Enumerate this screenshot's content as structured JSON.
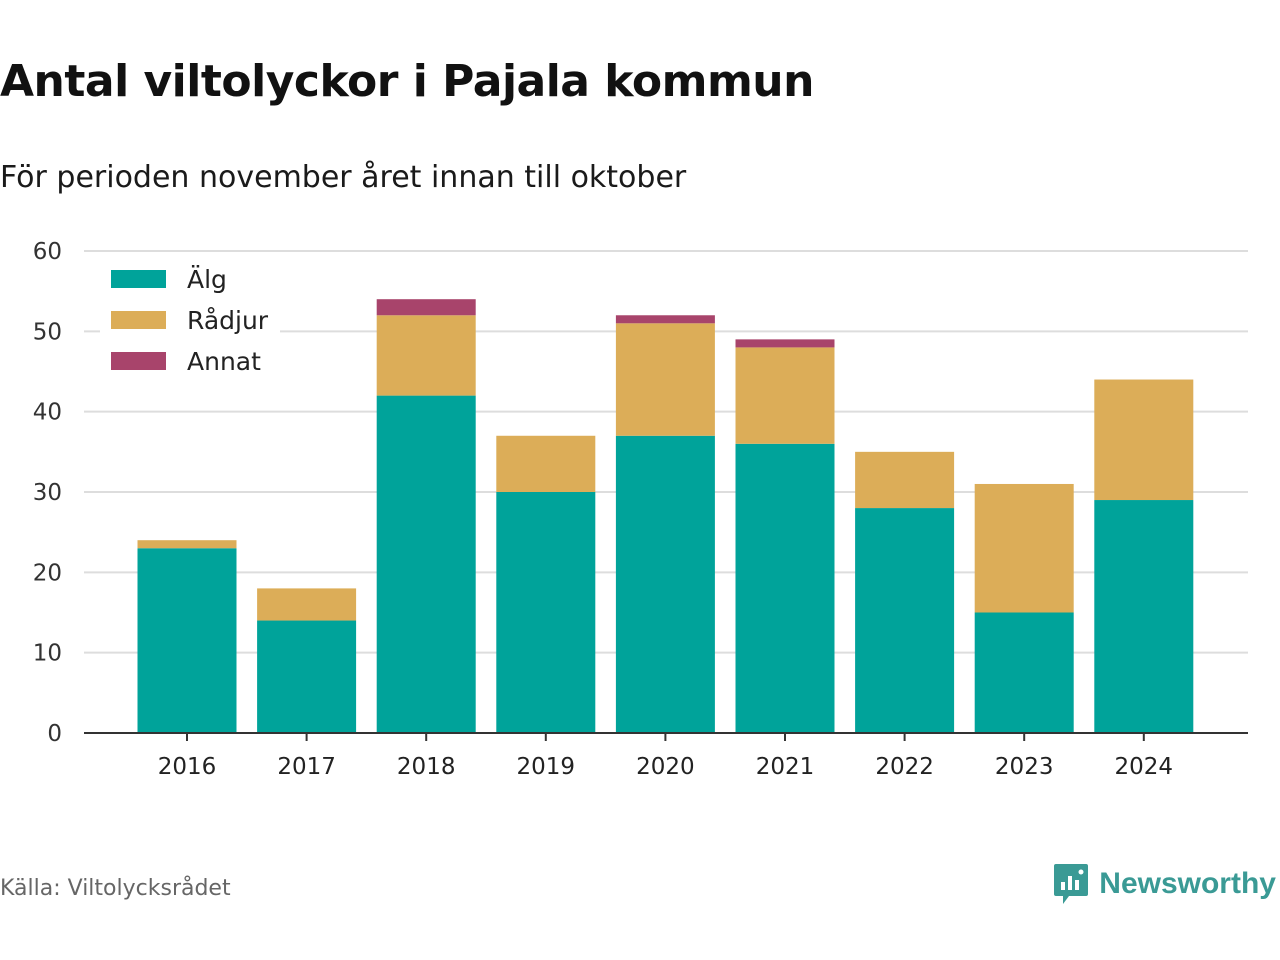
{
  "title": "Antal viltolyckor i Pajala kommun",
  "subtitle": "För perioden november året innan till oktober",
  "source": "Källa: Viltolycksrådet",
  "brand": "Newsworthy",
  "colors": {
    "alg": "#00a39a",
    "radjur": "#dcad58",
    "annat": "#a8446b",
    "grid": "#dddddd",
    "axis": "#333333"
  },
  "chart_data": {
    "type": "bar",
    "stacked": true,
    "categories": [
      "2016",
      "2017",
      "2018",
      "2019",
      "2020",
      "2021",
      "2022",
      "2023",
      "2024"
    ],
    "series": [
      {
        "name": "Älg",
        "values": [
          23,
          14,
          42,
          30,
          37,
          36,
          28,
          15,
          29
        ]
      },
      {
        "name": "Rådjur",
        "values": [
          1,
          4,
          10,
          7,
          14,
          12,
          7,
          16,
          15
        ]
      },
      {
        "name": "Annat",
        "values": [
          0,
          0,
          2,
          0,
          1,
          1,
          0,
          0,
          0
        ]
      }
    ],
    "ylim": [
      0,
      60
    ],
    "yticks": [
      0,
      10,
      20,
      30,
      40,
      50,
      60
    ],
    "grid": true,
    "legend": "top-left"
  }
}
